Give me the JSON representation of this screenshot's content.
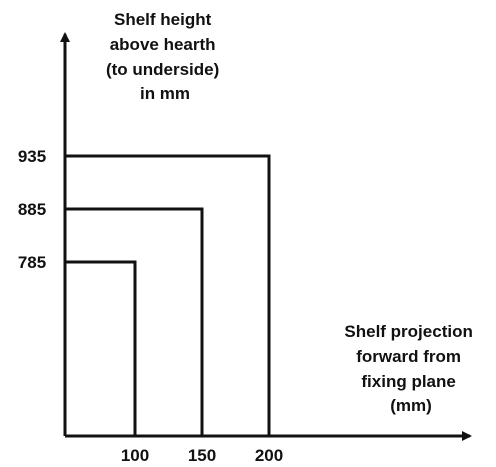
{
  "y_axis": {
    "title_lines": [
      "Shelf height",
      "above hearth",
      "(to underside)",
      "in mm"
    ],
    "ticks": [
      {
        "label": "935",
        "value": 935
      },
      {
        "label": "885",
        "value": 885
      },
      {
        "label": "785",
        "value": 785
      }
    ]
  },
  "x_axis": {
    "title_lines": [
      "Shelf projection",
      "forward from",
      "fixing plane",
      "(mm)"
    ],
    "ticks": [
      {
        "label": "100",
        "value": 100
      },
      {
        "label": "150",
        "value": 150
      },
      {
        "label": "200",
        "value": 200
      }
    ]
  },
  "limits": [
    {
      "projection": 100,
      "height": 785
    },
    {
      "projection": 150,
      "height": 885
    },
    {
      "projection": 200,
      "height": 935
    }
  ],
  "colors": {
    "line": "#111111",
    "text": "#111111",
    "background": "#ffffff"
  }
}
